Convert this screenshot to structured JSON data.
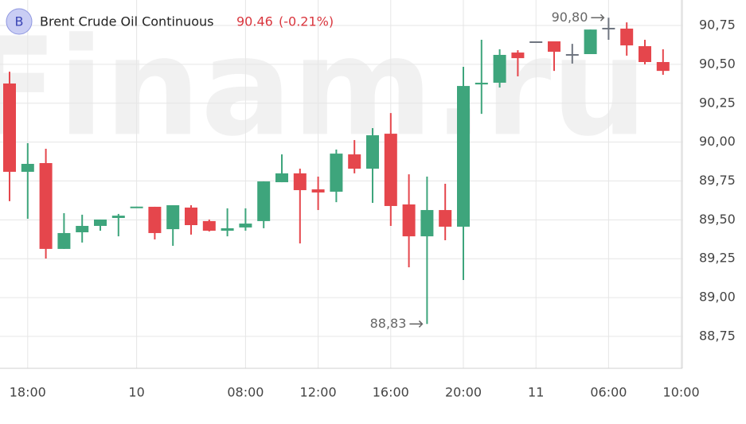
{
  "header": {
    "icon": "B",
    "title": "Brent Crude Oil Continuous",
    "price": "90.46",
    "change": "(-0.21%)"
  },
  "watermark": "Finam.ru",
  "chart_data": {
    "type": "candlestick",
    "categories": [
      null,
      "18:00",
      null,
      null,
      null,
      null,
      null,
      "10",
      null,
      null,
      null,
      null,
      null,
      "08:00",
      null,
      null,
      null,
      "12:00",
      null,
      null,
      null,
      "16:00",
      null,
      null,
      null,
      "20:00",
      null,
      null,
      null,
      "11",
      null,
      null,
      null,
      "06:00",
      null,
      null,
      null,
      "10:00"
    ],
    "series": [
      {
        "open": [
          90.377,
          89.809,
          89.865,
          89.313,
          89.42,
          89.461,
          89.512,
          89.584,
          89.584,
          89.44,
          89.579,
          89.492,
          89.43,
          89.451,
          89.492,
          89.742,
          89.799,
          89.696,
          89.681,
          89.921,
          89.829,
          90.054,
          89.599,
          89.394,
          89.563,
          89.456,
          90.371,
          90.382,
          90.576,
          90.648,
          90.648,
          90.566,
          90.566,
          90.735,
          90.73,
          90.617,
          90.515,
          null
        ],
        "high": [
          90.453,
          89.993,
          89.957,
          89.543,
          89.533,
          89.502,
          89.538,
          89.585,
          89.584,
          89.594,
          89.594,
          89.502,
          89.574,
          89.574,
          89.747,
          89.921,
          89.829,
          89.778,
          89.952,
          90.013,
          90.09,
          90.187,
          89.793,
          89.778,
          89.732,
          90.484,
          90.658,
          90.597,
          90.591,
          90.648,
          90.648,
          90.632,
          90.724,
          90.8,
          90.77,
          90.658,
          90.597,
          null
        ],
        "low": [
          89.62,
          89.507,
          89.251,
          89.313,
          89.354,
          89.43,
          89.394,
          89.584,
          89.374,
          89.333,
          89.405,
          89.425,
          89.394,
          89.43,
          89.446,
          89.742,
          89.348,
          89.563,
          89.614,
          89.799,
          89.609,
          89.461,
          89.195,
          88.83,
          89.369,
          89.113,
          90.182,
          90.351,
          90.423,
          90.648,
          90.458,
          90.505,
          90.566,
          90.658,
          90.556,
          90.5,
          90.433,
          null
        ],
        "close": [
          89.809,
          89.86,
          89.313,
          89.415,
          89.461,
          89.502,
          89.527,
          89.585,
          89.415,
          89.594,
          89.466,
          89.43,
          89.446,
          89.476,
          89.747,
          89.799,
          89.691,
          89.676,
          89.926,
          89.829,
          90.044,
          89.589,
          89.394,
          89.563,
          89.456,
          90.361,
          90.382,
          90.561,
          90.54,
          90.648,
          90.581,
          90.566,
          90.724,
          90.735,
          90.622,
          90.515,
          90.458,
          null
        ]
      }
    ],
    "colors": {
      "up": "#3ea57c",
      "down": "#e5464c",
      "flat": "#6f7580"
    },
    "annotations": {
      "low": "88,83",
      "high": "90,80"
    },
    "ylim": [
      88.545,
      90.914
    ],
    "yticks": [
      {
        "value": 88.75,
        "label": "88,75"
      },
      {
        "value": 89.0,
        "label": "89,00"
      },
      {
        "value": 89.25,
        "label": "89,25"
      },
      {
        "value": 89.5,
        "label": "89,50"
      },
      {
        "value": 89.75,
        "label": "89,75"
      },
      {
        "value": 90.0,
        "label": "90,00"
      },
      {
        "value": 90.25,
        "label": "90,25"
      },
      {
        "value": 90.5,
        "label": "90,50"
      },
      {
        "value": 90.75,
        "label": "90,75"
      }
    ],
    "grid": true
  }
}
